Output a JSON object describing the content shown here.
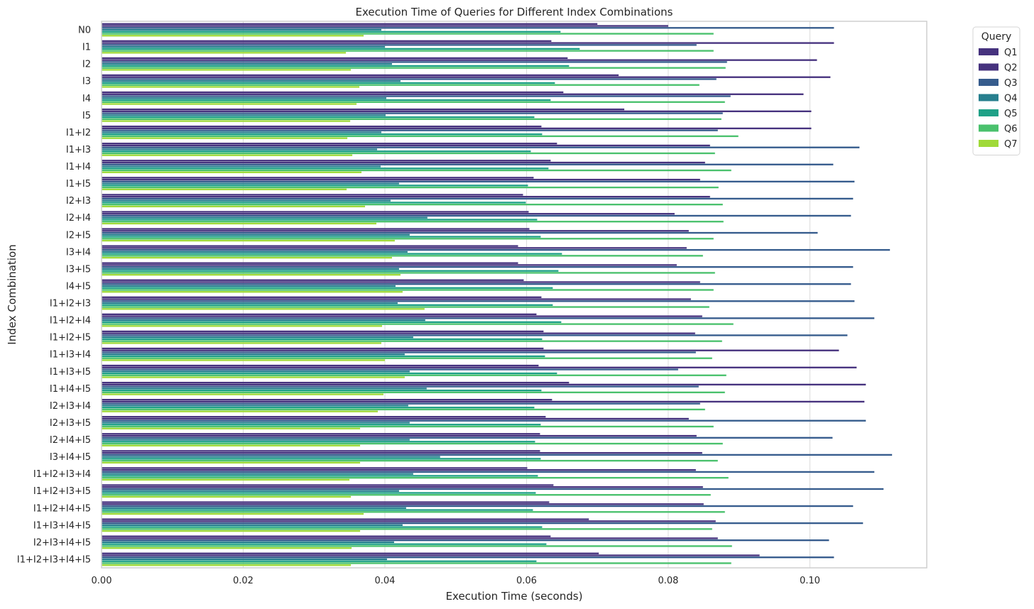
{
  "chart_data": {
    "type": "bar",
    "orientation": "horizontal",
    "title": "Execution Time of Queries for Different Index Combinations",
    "xlabel": "Execution Time (seconds)",
    "ylabel": "Index Combination",
    "xlim": [
      0,
      0.1165
    ],
    "xticks": [
      "0.00",
      "0.02",
      "0.04",
      "0.06",
      "0.08",
      "0.10"
    ],
    "grid": true,
    "legend": {
      "title": "Query",
      "position": "top-right, outside plot"
    },
    "categories": [
      "N0",
      "I1",
      "I2",
      "I3",
      "I4",
      "I5",
      "I1+I2",
      "I1+I3",
      "I1+I4",
      "I1+I5",
      "I2+I3",
      "I2+I4",
      "I2+I5",
      "I3+I4",
      "I3+I5",
      "I4+I5",
      "I1+I2+I3",
      "I1+I2+I4",
      "I1+I2+I5",
      "I1+I3+I4",
      "I1+I3+I5",
      "I1+I4+I5",
      "I2+I3+I4",
      "I2+I3+I5",
      "I2+I4+I5",
      "I3+I4+I5",
      "I1+I2+I3+I4",
      "I1+I2+I3+I5",
      "I1+I2+I4+I5",
      "I1+I3+I4+I5",
      "I2+I3+I4+I5",
      "I1+I2+I3+I4+I5"
    ],
    "series": [
      {
        "name": "Q1",
        "color": "#46327e",
        "values": [
          0.07,
          0.0635,
          0.0658,
          0.073,
          0.0652,
          0.0738,
          0.0621,
          0.0643,
          0.0634,
          0.061,
          0.0595,
          0.0603,
          0.0604,
          0.0588,
          0.0588,
          0.0596,
          0.0621,
          0.0614,
          0.0624,
          0.0624,
          0.0617,
          0.066,
          0.0636,
          0.0627,
          0.0619,
          0.0619,
          0.0601,
          0.0638,
          0.0632,
          0.0688,
          0.0634,
          0.0702
        ]
      },
      {
        "name": "Q2",
        "color": "#46327e",
        "values": [
          0.08,
          0.1034,
          0.101,
          0.1029,
          0.0991,
          0.1002,
          0.1002,
          0.0859,
          0.0852,
          0.0845,
          0.0859,
          0.0809,
          0.0829,
          0.0826,
          0.0812,
          0.0845,
          0.0832,
          0.0848,
          0.0838,
          0.1041,
          0.1066,
          0.1079,
          0.1077,
          0.0829,
          0.084,
          0.0848,
          0.0839,
          0.0849,
          0.085,
          0.0867,
          0.087,
          0.0929
        ]
      },
      {
        "name": "Q3",
        "color": "#365c8d",
        "values": [
          0.1034,
          0.084,
          0.0883,
          0.0868,
          0.0888,
          0.0877,
          0.087,
          0.107,
          0.1033,
          0.1063,
          0.1061,
          0.1058,
          0.1011,
          0.1113,
          0.1061,
          0.1058,
          0.1063,
          0.1091,
          0.1053,
          0.0839,
          0.0814,
          0.0843,
          0.0845,
          0.1079,
          0.1032,
          0.1116,
          0.1091,
          0.1104,
          0.1061,
          0.1075,
          0.1027,
          0.1034
        ]
      },
      {
        "name": "Q4",
        "color": "#277f8e",
        "values": [
          0.0395,
          0.04,
          0.041,
          0.0422,
          0.0402,
          0.0401,
          0.0395,
          0.0389,
          0.0394,
          0.042,
          0.0408,
          0.046,
          0.0435,
          0.0432,
          0.042,
          0.0415,
          0.0418,
          0.0457,
          0.044,
          0.0428,
          0.0435,
          0.0459,
          0.0433,
          0.0435,
          0.0435,
          0.0478,
          0.044,
          0.042,
          0.043,
          0.0425,
          0.0413,
          0.0403
        ]
      },
      {
        "name": "Q5",
        "color": "#1fa187",
        "values": [
          0.0648,
          0.0675,
          0.066,
          0.064,
          0.0634,
          0.0611,
          0.0622,
          0.0606,
          0.0631,
          0.0602,
          0.0599,
          0.0615,
          0.062,
          0.065,
          0.0645,
          0.0637,
          0.0637,
          0.0649,
          0.0622,
          0.0626,
          0.0643,
          0.0621,
          0.0611,
          0.062,
          0.0612,
          0.062,
          0.0616,
          0.0613,
          0.0609,
          0.0622,
          0.0628,
          0.0614
        ]
      },
      {
        "name": "Q6",
        "color": "#4ac16d",
        "values": [
          0.0864,
          0.0864,
          0.0881,
          0.0844,
          0.088,
          0.0875,
          0.0899,
          0.0866,
          0.0889,
          0.0871,
          0.0877,
          0.0878,
          0.0864,
          0.0849,
          0.0866,
          0.0864,
          0.0858,
          0.0892,
          0.0876,
          0.0862,
          0.0882,
          0.088,
          0.0852,
          0.0864,
          0.0877,
          0.087,
          0.0885,
          0.086,
          0.088,
          0.0862,
          0.089,
          0.0889
        ]
      },
      {
        "name": "Q7",
        "color": "#a0da39",
        "values": [
          0.037,
          0.0345,
          0.0352,
          0.0364,
          0.036,
          0.0351,
          0.0347,
          0.0354,
          0.0367,
          0.0346,
          0.0372,
          0.0388,
          0.0414,
          0.041,
          0.0422,
          0.0425,
          0.0456,
          0.0396,
          0.0395,
          0.04,
          0.0428,
          0.0398,
          0.039,
          0.0365,
          0.0365,
          0.0365,
          0.035,
          0.0352,
          0.037,
          0.0365,
          0.0353,
          0.0352
        ]
      }
    ]
  }
}
